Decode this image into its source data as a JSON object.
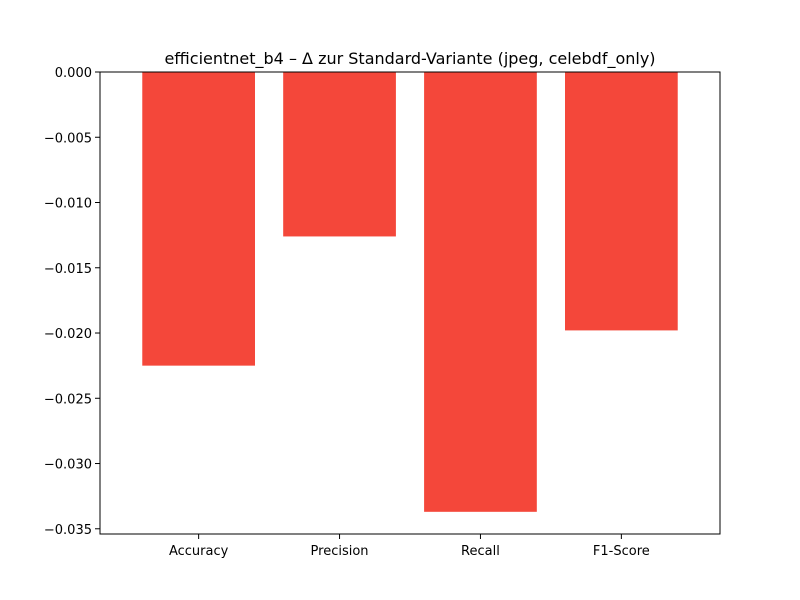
{
  "chart_data": {
    "type": "bar",
    "title": "efficientnet_b4 – Δ zur Standard-Variante (jpeg, celebdf_only)",
    "xlabel": "",
    "ylabel": "",
    "categories": [
      "Accuracy",
      "Precision",
      "Recall",
      "F1-Score"
    ],
    "values": [
      -0.0225,
      -0.0126,
      -0.0337,
      -0.0198
    ],
    "ylim": [
      -0.0354,
      0.0
    ],
    "yticks": [
      0.0,
      -0.005,
      -0.01,
      -0.015,
      -0.02,
      -0.025,
      -0.03,
      -0.035
    ],
    "ytick_labels": [
      "0.000",
      "−0.005",
      "−0.010",
      "−0.015",
      "−0.020",
      "−0.025",
      "−0.030",
      "−0.035"
    ],
    "grid": false,
    "colors": {
      "bar": "#f4473a"
    }
  }
}
